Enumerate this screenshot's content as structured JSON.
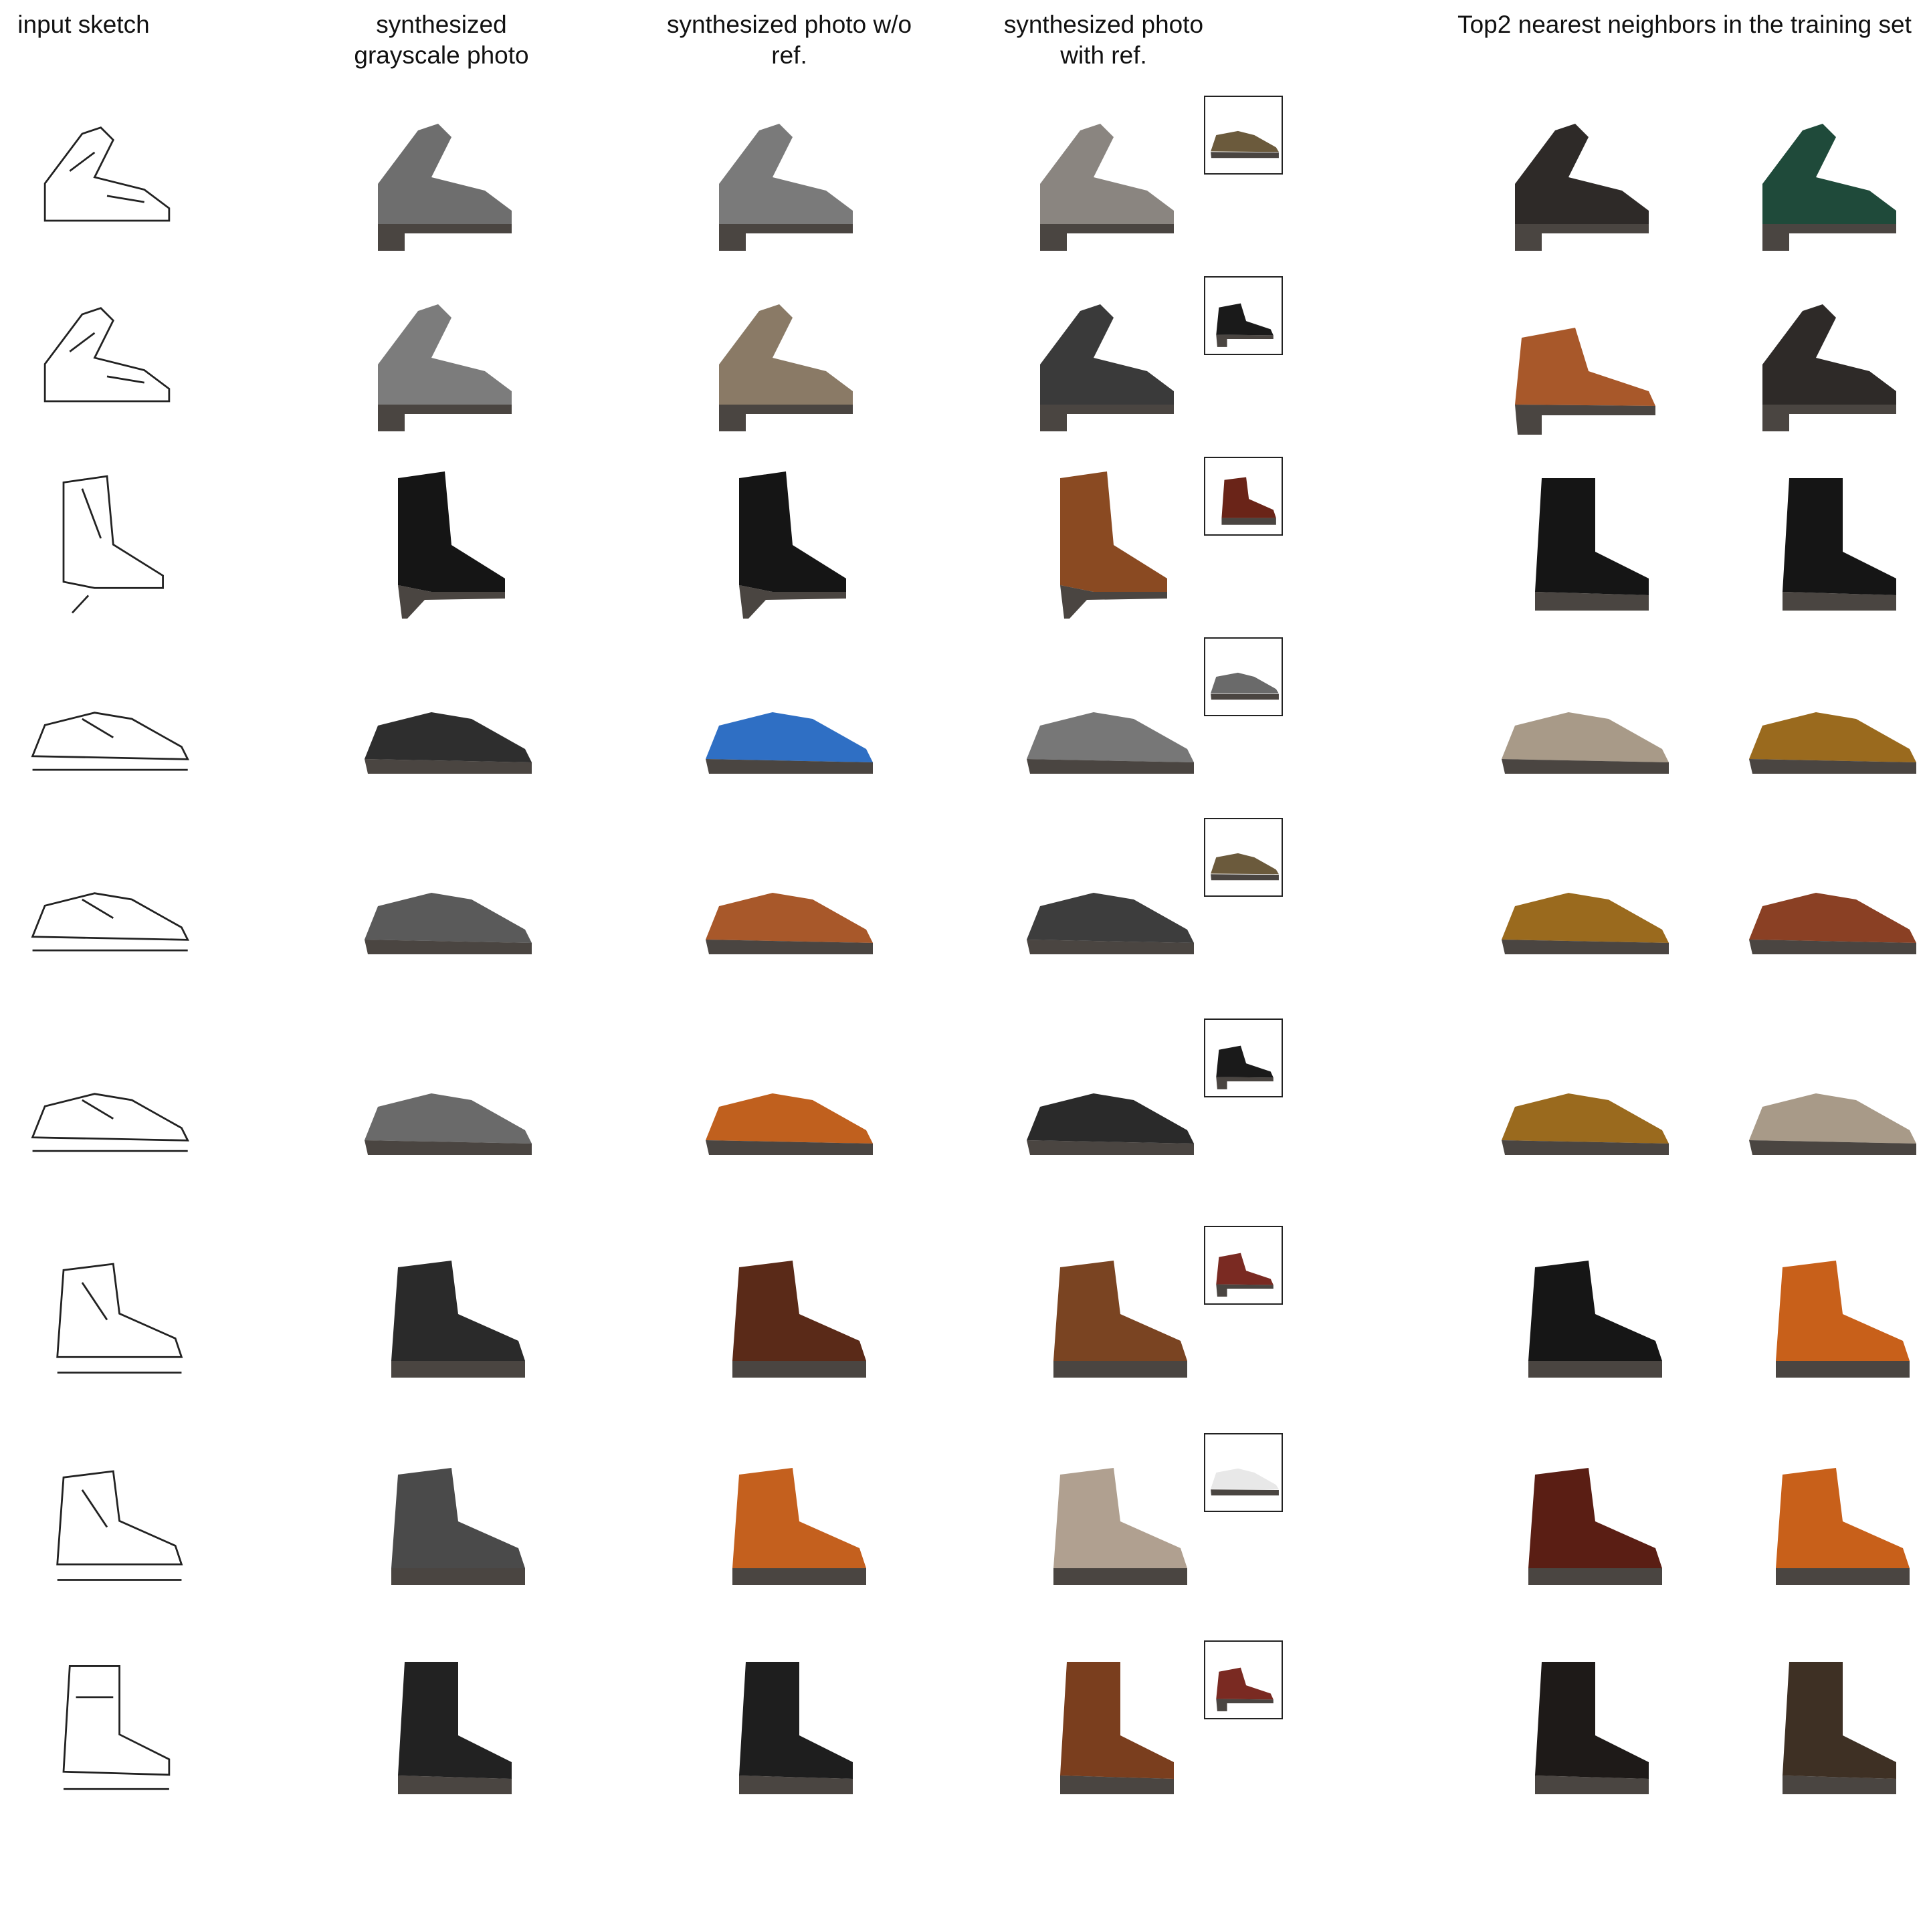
{
  "headers": {
    "col1": "input sketch",
    "col2": "synthesized grayscale photo",
    "col3": "synthesized photo w/o ref.",
    "col4": "synthesized photo with ref.",
    "col5": "Top2 nearest neighbors in the training set"
  },
  "rows": [
    {
      "type": "sandal",
      "gray": "#6e6e6e",
      "wo": "#7a7a7a",
      "with": "#8a8580",
      "ref_type": "sneaker",
      "ref_color": "#6b5a3c",
      "nn1_type": "sandal",
      "nn1_color": "#2e2a28",
      "nn2_type": "sandal",
      "nn2_color": "#1f4a3a"
    },
    {
      "type": "sandal",
      "gray": "#7c7c7c",
      "wo": "#8a7a66",
      "with": "#3a3a3a",
      "ref_type": "bootie",
      "ref_color": "#1a1a1a",
      "nn1_type": "bootie",
      "nn1_color": "#a8582a",
      "nn2_type": "sandal",
      "nn2_color": "#2e2a28"
    },
    {
      "type": "heelboot",
      "gray": "#151515",
      "wo": "#151515",
      "with": "#8a4a22",
      "ref_type": "boot",
      "ref_color": "#6a2418",
      "nn1_type": "tallboot",
      "nn1_color": "#151515",
      "nn2_type": "tallboot",
      "nn2_color": "#151515"
    },
    {
      "type": "oxford",
      "gray": "#2e2e2e",
      "wo": "#2f6fc4",
      "with": "#777777",
      "ref_type": "sneaker",
      "ref_color": "#6a6a6a",
      "nn1_type": "oxford",
      "nn1_color": "#a89a88",
      "nn2_type": "oxford",
      "nn2_color": "#9a6a1e"
    },
    {
      "type": "oxford",
      "gray": "#5a5a5a",
      "wo": "#a8582a",
      "with": "#3d3d3d",
      "ref_type": "sneaker",
      "ref_color": "#6b5a3c",
      "nn1_type": "oxford",
      "nn1_color": "#9a6a1e",
      "nn2_type": "oxford",
      "nn2_color": "#8a4024"
    },
    {
      "type": "oxford",
      "gray": "#6a6a6a",
      "wo": "#c0601e",
      "with": "#2a2a2a",
      "ref_type": "bootie",
      "ref_color": "#1a1a1a",
      "nn1_type": "oxford",
      "nn1_color": "#9a6a1e",
      "nn2_type": "oxford",
      "nn2_color": "#a89a88"
    },
    {
      "type": "boot",
      "gray": "#2a2a2a",
      "wo": "#5a2a18",
      "with": "#7a4422",
      "ref_type": "bootie",
      "ref_color": "#7a2a22",
      "nn1_type": "boot",
      "nn1_color": "#161616",
      "nn2_type": "boot",
      "nn2_color": "#c8601a"
    },
    {
      "type": "boot",
      "gray": "#4a4a4a",
      "wo": "#c4601e",
      "with": "#b0a090",
      "ref_type": "sneaker",
      "ref_color": "#e8e8e8",
      "nn1_type": "boot",
      "nn1_color": "#5a1e14",
      "nn2_type": "boot",
      "nn2_color": "#c8601a"
    },
    {
      "type": "tallboot",
      "gray": "#222222",
      "wo": "#1e1e1e",
      "with": "#7a3e1e",
      "ref_type": "bootie",
      "ref_color": "#7a2a22",
      "nn1_type": "tallboot",
      "nn1_color": "#1e1a18",
      "nn2_type": "tallboot",
      "nn2_color": "#3e3024"
    }
  ]
}
